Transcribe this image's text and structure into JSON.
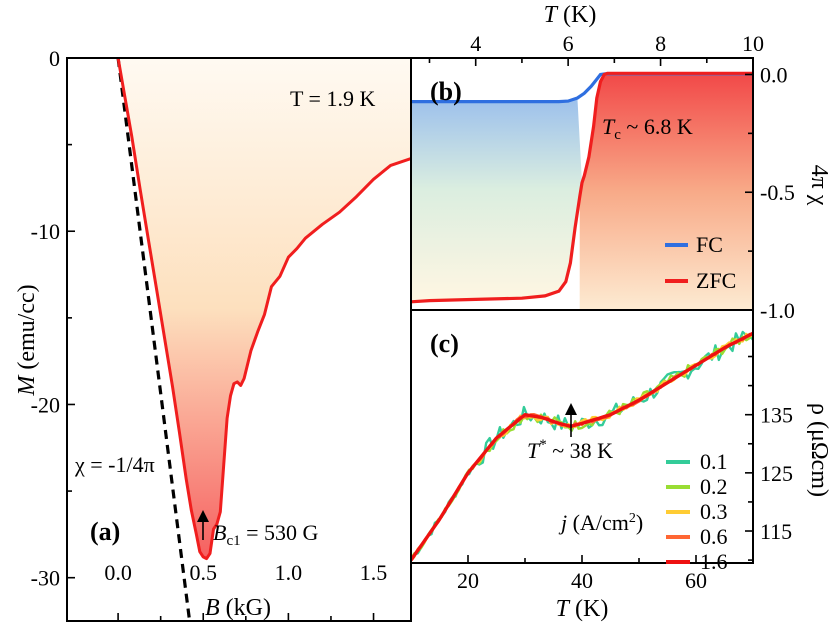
{
  "colors": {
    "red": "#f01e1e",
    "blue": "#2f6fe0",
    "series_0_1": "#33cc99",
    "series_0_2": "#99dd33",
    "series_0_3": "#ffcc33",
    "series_0_6": "#ff6633",
    "series_1_6": "#ee1111"
  },
  "chart_data": [
    {
      "panel": "(a)",
      "type": "line",
      "xlabel": "B (kG)",
      "ylabel": "M (emu/cc)",
      "xlim": [
        -0.3,
        1.72
      ],
      "ylim": [
        -32.5,
        0
      ],
      "xticks": [
        "0.0",
        "0.5",
        "1.0",
        "1.5"
      ],
      "yticks": [
        "0",
        "-10",
        "-20",
        "-30"
      ],
      "annotations": {
        "temperature": "T = 1.9 K",
        "slope": "χ = -1/4π",
        "bc1": "B",
        "bc1_sub": "c1",
        "bc1_value": " = 530 G"
      },
      "series": [
        {
          "name": "M(B)",
          "x": [
            0.0,
            0.03,
            0.08,
            0.13,
            0.18,
            0.23,
            0.28,
            0.32,
            0.36,
            0.4,
            0.43,
            0.46,
            0.48,
            0.5,
            0.52,
            0.54,
            0.56,
            0.58,
            0.6,
            0.62,
            0.64,
            0.66,
            0.68,
            0.7,
            0.72,
            0.74,
            0.78,
            0.82,
            0.86,
            0.9,
            0.95,
            1.0,
            1.05,
            1.1,
            1.2,
            1.3,
            1.4,
            1.5,
            1.6,
            1.72
          ],
          "y": [
            0,
            -1.7,
            -4.5,
            -7.6,
            -10.6,
            -13.6,
            -16.6,
            -19.0,
            -21.6,
            -24.3,
            -26.1,
            -27.5,
            -28.5,
            -28.8,
            -28.9,
            -28.6,
            -27.2,
            -26.9,
            -26.2,
            -23.5,
            -20.8,
            -19.5,
            -18.8,
            -18.7,
            -18.9,
            -18.5,
            -16.9,
            -15.8,
            -14.8,
            -13.2,
            -12.6,
            -11.5,
            -11.0,
            -10.4,
            -9.6,
            -8.9,
            -8.0,
            -7.0,
            -6.2,
            -5.8
          ]
        },
        {
          "name": "χ = -1/4π",
          "style": "dashed",
          "x": [
            0.0,
            0.42
          ],
          "y": [
            0,
            -32.5
          ]
        }
      ]
    },
    {
      "panel": "(b)",
      "type": "line",
      "xlabel": "T (K)",
      "ylabel": "4π χ",
      "xlim": [
        2.6,
        10
      ],
      "ylim": [
        -1.0,
        0.07
      ],
      "xticks": [
        "4",
        "6",
        "8",
        "10"
      ],
      "yticks": [
        "0.0",
        "-0.5",
        "-1.0"
      ],
      "annotations": {
        "tc_symbol": "T",
        "tc_sub": "c",
        "tc_value": " ~ 6.8 K"
      },
      "legend": [
        "FC",
        "ZFC"
      ],
      "series": [
        {
          "name": "FC",
          "x": [
            2.6,
            3.0,
            4.0,
            5.0,
            5.8,
            6.0,
            6.2,
            6.35,
            6.5,
            6.6,
            6.7,
            6.8,
            7.0,
            8.0,
            9.0,
            10.0
          ],
          "y": [
            -0.115,
            -0.115,
            -0.115,
            -0.115,
            -0.115,
            -0.113,
            -0.1,
            -0.08,
            -0.05,
            -0.025,
            0.0,
            0.003,
            0.003,
            0.003,
            0.003,
            0.003
          ]
        },
        {
          "name": "ZFC",
          "x": [
            2.6,
            3.0,
            4.0,
            5.0,
            5.5,
            5.8,
            5.95,
            6.05,
            6.15,
            6.25,
            6.3,
            6.35,
            6.45,
            6.55,
            6.62,
            6.7,
            6.78,
            6.85,
            7.0,
            8.0,
            9.0,
            10.0
          ],
          "y": [
            -0.965,
            -0.96,
            -0.955,
            -0.95,
            -0.94,
            -0.92,
            -0.88,
            -0.8,
            -0.65,
            -0.52,
            -0.46,
            -0.43,
            -0.35,
            -0.22,
            -0.1,
            -0.03,
            0.0,
            0.005,
            0.005,
            0.005,
            0.005,
            0.005
          ]
        }
      ]
    },
    {
      "panel": "(c)",
      "type": "line",
      "xlabel": "T (K)",
      "ylabel": "ρ (μΩcm)",
      "xlim": [
        10,
        70
      ],
      "ylim": [
        109.5,
        153
      ],
      "xticks": [
        "20",
        "40",
        "60"
      ],
      "yticks": [
        "115",
        "125",
        "135"
      ],
      "annotations": {
        "tstar_symbol": "T",
        "tstar_sup": "*",
        "tstar_value": " ~ 38 K",
        "legend_title": "j (A/cm²)"
      },
      "series": [
        {
          "name": "0.1",
          "noise": 1.5,
          "x": [
            10,
            15,
            20,
            25,
            30,
            33,
            36,
            38,
            40,
            45,
            50,
            55,
            60,
            65,
            70
          ],
          "y": [
            110,
            117,
            125,
            131,
            135,
            134.5,
            133.5,
            133,
            133.5,
            135,
            137.5,
            140.5,
            143.5,
            146.5,
            149
          ]
        },
        {
          "name": "0.2",
          "noise": 0.9,
          "x": [
            10,
            15,
            20,
            25,
            30,
            33,
            36,
            38,
            40,
            45,
            50,
            55,
            60,
            65,
            70
          ],
          "y": [
            110,
            117,
            125,
            131,
            135,
            134.5,
            133.5,
            133,
            133.5,
            135,
            137.5,
            140.5,
            143.5,
            146.5,
            149
          ]
        },
        {
          "name": "0.3",
          "noise": 0.6,
          "x": [
            10,
            15,
            20,
            25,
            30,
            33,
            36,
            38,
            40,
            45,
            50,
            55,
            60,
            65,
            70
          ],
          "y": [
            110,
            117,
            125,
            131,
            135,
            134.5,
            133.5,
            133,
            133.5,
            135,
            137.5,
            140.5,
            143.5,
            146.5,
            149
          ]
        },
        {
          "name": "0.6",
          "noise": 0.35,
          "x": [
            10,
            15,
            20,
            25,
            30,
            33,
            36,
            38,
            40,
            45,
            50,
            55,
            60,
            65,
            70
          ],
          "y": [
            110,
            117,
            125,
            131,
            135,
            134.5,
            133.5,
            133,
            133.5,
            135,
            137.5,
            140.5,
            143.5,
            146.5,
            149
          ]
        },
        {
          "name": "1.6",
          "noise": 0.0,
          "x": [
            10,
            15,
            20,
            25,
            30,
            33,
            36,
            38,
            40,
            45,
            50,
            55,
            60,
            65,
            70
          ],
          "y": [
            110,
            117,
            125,
            131,
            135,
            134.5,
            133.5,
            133,
            133.5,
            135,
            137.5,
            140.5,
            143.5,
            146.5,
            149
          ]
        }
      ]
    }
  ]
}
